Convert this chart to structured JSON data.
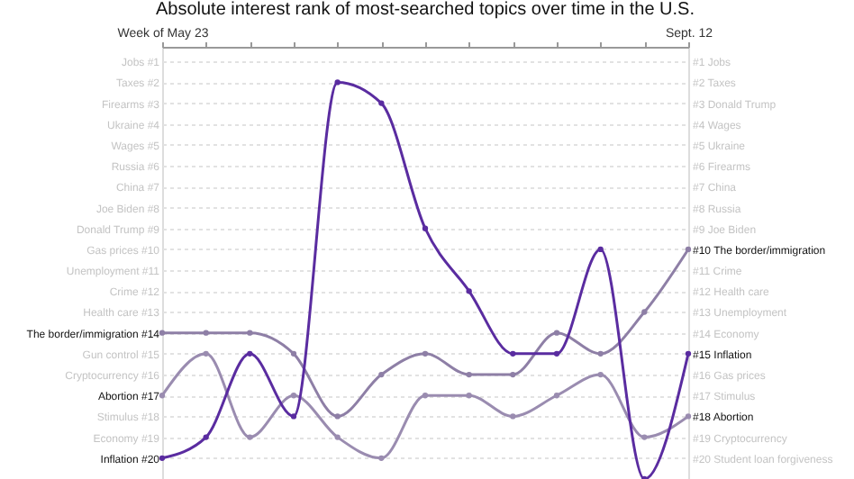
{
  "chart_data": {
    "type": "line",
    "title": "Absolute interest rank of most-searched topics over time in the U.S.",
    "categories": [
      "Week of May 23",
      null,
      null,
      null,
      null,
      null,
      null,
      null,
      null,
      null,
      null,
      null,
      "Sept. 12"
    ],
    "series": [
      {
        "color": "#8e7fa6",
        "values": [
          14,
          14,
          14,
          15,
          18,
          16,
          15,
          16,
          16,
          14,
          15,
          13,
          10
        ]
      },
      {
        "color": "#9a8cb0",
        "values": [
          17,
          15,
          19,
          17,
          19,
          20,
          17,
          17,
          18,
          17,
          16,
          19,
          18
        ]
      },
      {
        "color": "#5a2ca0",
        "values": [
          20,
          19,
          15,
          18,
          2,
          3,
          9,
          12,
          15,
          15,
          10,
          21,
          15
        ]
      }
    ],
    "ylim": [
      21,
      0.3
    ],
    "yticks": [
      {
        "value": 1,
        "label": "Jobs #1"
      },
      {
        "value": 2,
        "label": "Taxes #2"
      },
      {
        "value": 3,
        "label": "Firearms #3"
      },
      {
        "value": 4,
        "label": "Ukraine #4"
      },
      {
        "value": 5,
        "label": "Wages #5"
      },
      {
        "value": 6,
        "label": "Russia #6"
      },
      {
        "value": 7,
        "label": "China #7"
      },
      {
        "value": 8,
        "label": "Joe Biden #8"
      },
      {
        "value": 9,
        "label": "Donald Trump #9"
      },
      {
        "value": 10,
        "label": "Gas prices #10"
      },
      {
        "value": 11,
        "label": "Unemployment #11"
      },
      {
        "value": 12,
        "label": "Crime #12"
      },
      {
        "value": 13,
        "label": "Health care #13"
      },
      {
        "value": 14,
        "label": "The border/immigration #14"
      },
      {
        "value": 15,
        "label": "Gun control #15"
      },
      {
        "value": 16,
        "label": "Cryptocurrency #16"
      },
      {
        "value": 17,
        "label": "Abortion #17"
      },
      {
        "value": 18,
        "label": "Stimulus #18"
      },
      {
        "value": 19,
        "label": "Economy #19"
      },
      {
        "value": 20,
        "label": "Inflation #20"
      }
    ],
    "y2lim": [
      21,
      0.3
    ],
    "y2ticks": [
      {
        "value": 1,
        "label": "#1 Jobs"
      },
      {
        "value": 2,
        "label": "#2 Taxes"
      },
      {
        "value": 3,
        "label": "#3 Donald Trump"
      },
      {
        "value": 4,
        "label": "#4 Wages"
      },
      {
        "value": 5,
        "label": "#5 Ukraine"
      },
      {
        "value": 6,
        "label": "#6 Firearms"
      },
      {
        "value": 7,
        "label": "#7 China"
      },
      {
        "value": 8,
        "label": "#8 Russia"
      },
      {
        "value": 9,
        "label": "#9 Joe Biden"
      },
      {
        "value": 10,
        "label": "#10 The border/immigration"
      },
      {
        "value": 11,
        "label": "#11 Crime"
      },
      {
        "value": 12,
        "label": "#12 Health care"
      },
      {
        "value": 13,
        "label": "#13 Unemployment"
      },
      {
        "value": 14,
        "label": "#14 Economy"
      },
      {
        "value": 15,
        "label": "#15 Inflation"
      },
      {
        "value": 16,
        "label": "#16 Gas prices"
      },
      {
        "value": 17,
        "label": "#17 Stimulus"
      },
      {
        "value": 18,
        "label": "#18 Abortion"
      },
      {
        "value": 19,
        "label": "#19 Cryptocurrency"
      },
      {
        "value": 20,
        "label": "#20 Student loan forgiveness"
      }
    ],
    "grid": "y",
    "marker": "circle"
  }
}
